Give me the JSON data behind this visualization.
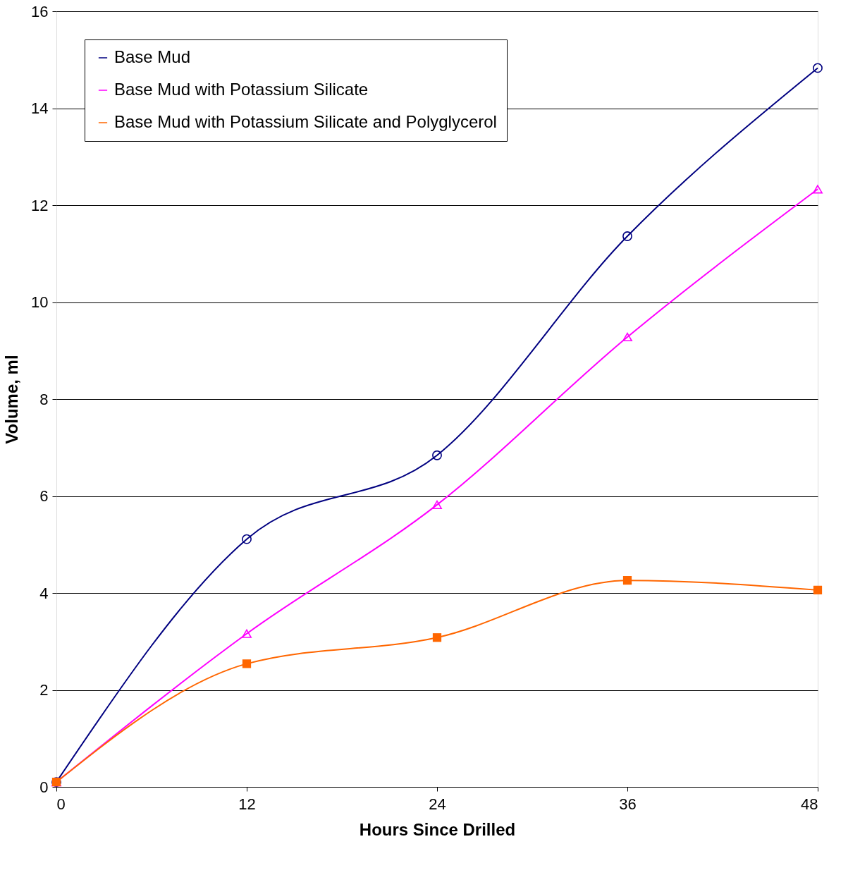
{
  "chart_data": {
    "type": "line",
    "xlabel": "Hours Since Drilled",
    "ylabel": "Volume, ml",
    "x": [
      0,
      12,
      24,
      36,
      48
    ],
    "series": [
      {
        "name": "Base Mud",
        "color": "#000080",
        "marker": "circle",
        "values": [
          0.1,
          5.11,
          6.84,
          11.36,
          14.83
        ]
      },
      {
        "name": "Base Mud with Potassium Silicate",
        "color": "#ff00ff",
        "marker": "triangle",
        "values": [
          0.1,
          3.16,
          5.82,
          9.28,
          12.33
        ]
      },
      {
        "name": "Base Mud with Potassium Silicate and Polyglycerol",
        "color": "#ff6600",
        "marker": "square",
        "values": [
          0.1,
          2.54,
          3.08,
          4.26,
          4.06
        ]
      }
    ],
    "xlim": [
      0,
      48
    ],
    "xticks": [
      0,
      12,
      24,
      36,
      48
    ],
    "ylim": [
      0,
      16
    ],
    "yticks": [
      0,
      2,
      4,
      6,
      8,
      10,
      12,
      14,
      16
    ],
    "grid": "y",
    "legend": "top left",
    "line_style": "solid"
  }
}
